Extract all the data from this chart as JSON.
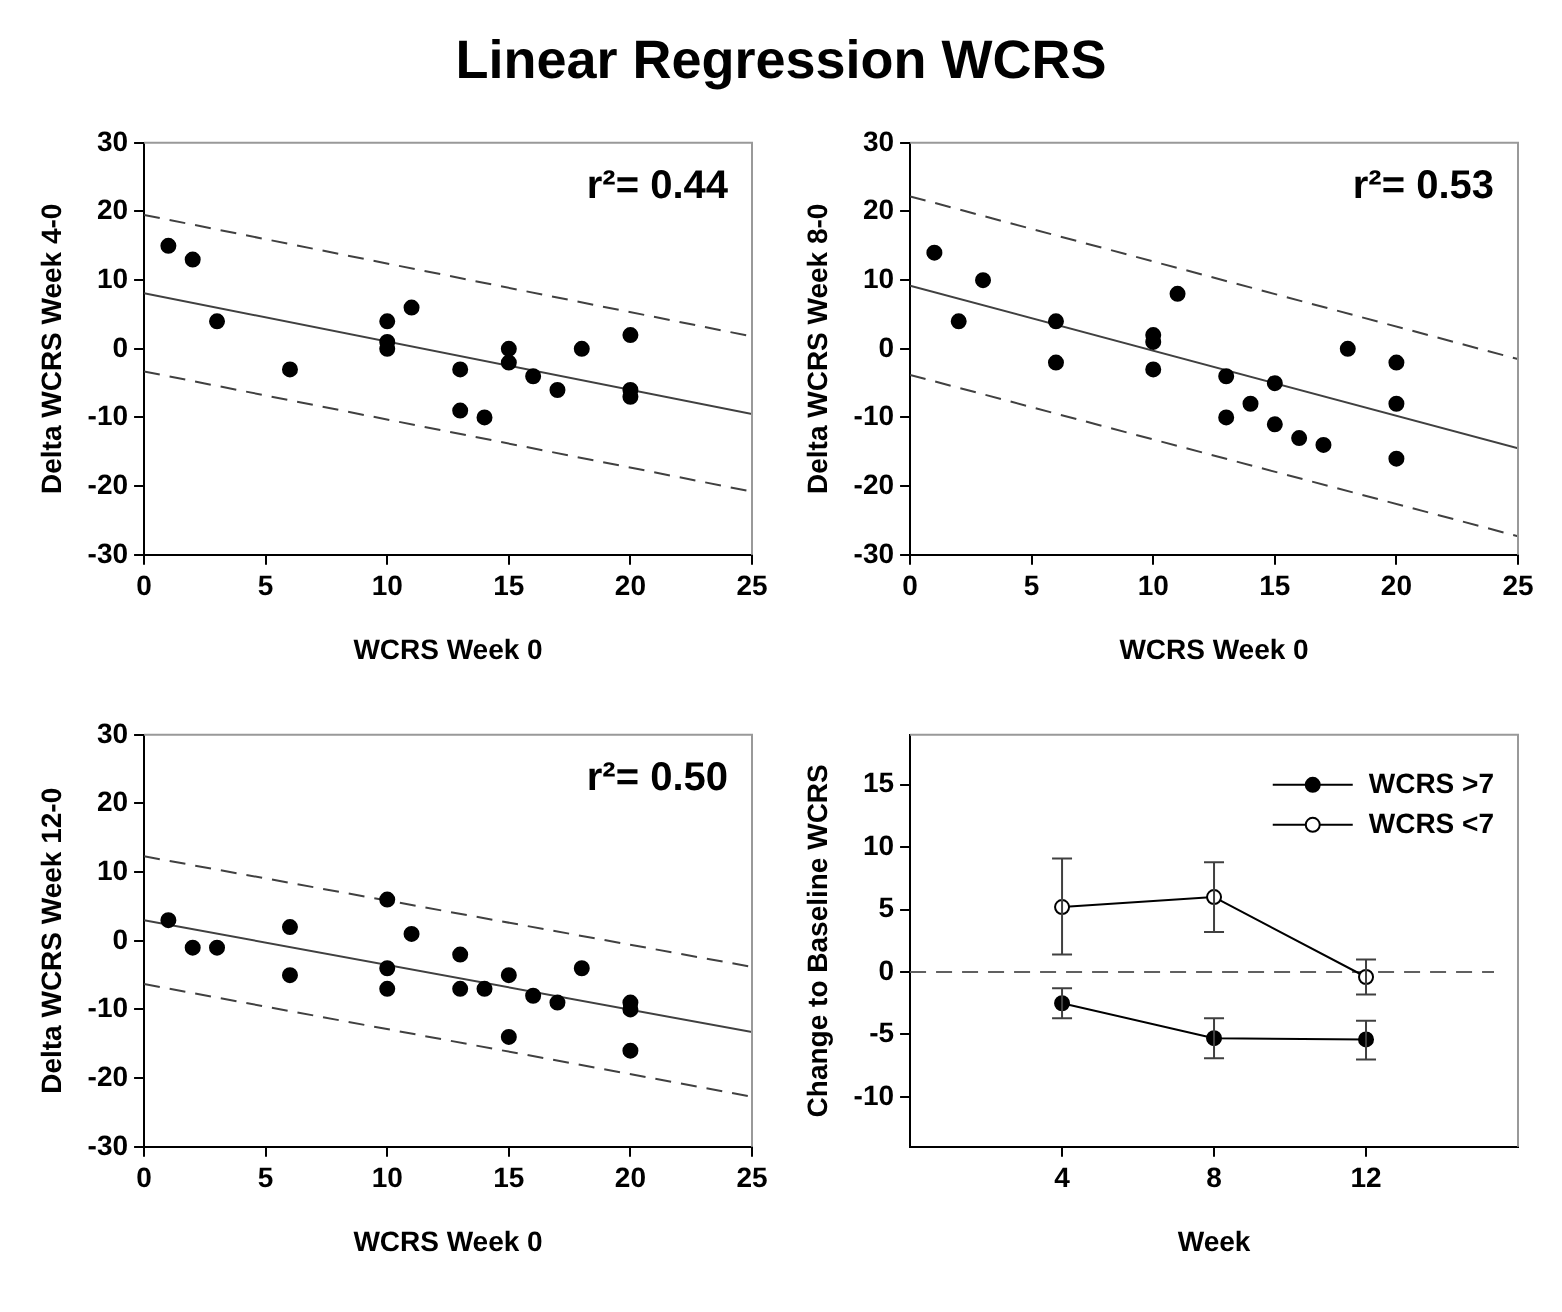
{
  "chart_data": [
    {
      "type": "scatter",
      "title": "Linear Regression WCRS",
      "xlabel": "WCRS Week 0",
      "ylabel": "Delta WCRS Week 4-0",
      "xlim": [
        0,
        25
      ],
      "xticks": [
        0,
        5,
        10,
        15,
        20,
        25
      ],
      "ylim": [
        -30,
        30
      ],
      "yticks": [
        -30,
        -20,
        -10,
        0,
        10,
        20,
        30
      ],
      "grid": false,
      "legend": false,
      "annotations": [
        "r²= 0.44"
      ],
      "series": [
        {
          "marker": "circle",
          "color": "#000000",
          "x": [
            1,
            2,
            3,
            6,
            10,
            10,
            10,
            11,
            13,
            13,
            14,
            15,
            15,
            16,
            17,
            18,
            20,
            20,
            20
          ],
          "values": [
            15,
            13,
            4,
            -3,
            4,
            1,
            0,
            6,
            -3,
            -9,
            -10,
            0,
            -2,
            -4,
            -6,
            0,
            2,
            -6,
            -7
          ]
        },
        {
          "type": "line",
          "marker": "none",
          "line_style": "solid",
          "color": "#404040",
          "x": [
            0,
            25
          ],
          "values": [
            8.1,
            -9.5
          ]
        },
        {
          "type": "line",
          "marker": "none",
          "line_style": "dashed",
          "color": "#404040",
          "x": [
            0,
            25
          ],
          "values": [
            19.5,
            1.8
          ]
        },
        {
          "type": "line",
          "marker": "none",
          "line_style": "dashed",
          "color": "#404040",
          "x": [
            0,
            25
          ],
          "values": [
            -3.3,
            -20.8
          ]
        }
      ]
    },
    {
      "type": "scatter",
      "xlabel": "WCRS Week 0",
      "ylabel": "Delta WCRS Week 8-0",
      "xlim": [
        0,
        25
      ],
      "xticks": [
        0,
        5,
        10,
        15,
        20,
        25
      ],
      "ylim": [
        -30,
        30
      ],
      "yticks": [
        -30,
        -20,
        -10,
        0,
        10,
        20,
        30
      ],
      "grid": false,
      "legend": false,
      "annotations": [
        "r²= 0.53"
      ],
      "series": [
        {
          "marker": "circle",
          "color": "#000000",
          "x": [
            1,
            2,
            3,
            6,
            6,
            10,
            10,
            10,
            11,
            13,
            13,
            14,
            15,
            15,
            16,
            17,
            18,
            20,
            20,
            20
          ],
          "values": [
            14,
            4,
            10,
            4,
            -2,
            2,
            1,
            -3,
            8,
            -4,
            -10,
            -8,
            -5,
            -11,
            -13,
            -14,
            0,
            -2,
            -8,
            -16
          ]
        },
        {
          "type": "line",
          "marker": "none",
          "line_style": "solid",
          "color": "#404040",
          "x": [
            0,
            25
          ],
          "values": [
            9.2,
            -14.5
          ]
        },
        {
          "type": "line",
          "marker": "none",
          "line_style": "dashed",
          "color": "#404040",
          "x": [
            0,
            25
          ],
          "values": [
            22.2,
            -1.5
          ]
        },
        {
          "type": "line",
          "marker": "none",
          "line_style": "dashed",
          "color": "#404040",
          "x": [
            0,
            25
          ],
          "values": [
            -3.8,
            -27.3
          ]
        }
      ]
    },
    {
      "type": "scatter",
      "xlabel": "WCRS Week 0",
      "ylabel": "Delta WCRS Week 12-0",
      "xlim": [
        0,
        25
      ],
      "xticks": [
        0,
        5,
        10,
        15,
        20,
        25
      ],
      "ylim": [
        -30,
        30
      ],
      "yticks": [
        -30,
        -20,
        -10,
        0,
        10,
        20,
        30
      ],
      "grid": false,
      "legend": false,
      "annotations": [
        "r²= 0.50"
      ],
      "series": [
        {
          "marker": "circle",
          "color": "#000000",
          "x": [
            1,
            2,
            3,
            6,
            6,
            10,
            10,
            10,
            11,
            13,
            13,
            14,
            15,
            15,
            16,
            17,
            18,
            20,
            20,
            20
          ],
          "values": [
            3,
            -1,
            -1,
            2,
            -5,
            6,
            -4,
            -7,
            1,
            -2,
            -7,
            -7,
            -5,
            -14,
            -8,
            -9,
            -4,
            -9,
            -10,
            -16
          ]
        },
        {
          "type": "line",
          "marker": "none",
          "line_style": "solid",
          "color": "#404040",
          "x": [
            0,
            25
          ],
          "values": [
            3.0,
            -13.3
          ]
        },
        {
          "type": "line",
          "marker": "none",
          "line_style": "dashed",
          "color": "#404040",
          "x": [
            0,
            25
          ],
          "values": [
            12.3,
            -3.8
          ]
        },
        {
          "type": "line",
          "marker": "none",
          "line_style": "dashed",
          "color": "#404040",
          "x": [
            0,
            25
          ],
          "values": [
            -6.3,
            -22.7
          ]
        }
      ]
    },
    {
      "type": "line",
      "xlabel": "Week",
      "ylabel": "Change to Baseline WCRS",
      "x": [
        4,
        8,
        12
      ],
      "xlim": [
        0,
        16
      ],
      "xticks": [
        4,
        8,
        12
      ],
      "ylim": [
        -14,
        19
      ],
      "yticks": [
        -10,
        -5,
        0,
        5,
        10,
        15
      ],
      "grid": false,
      "legend": "top right",
      "marker": "circle",
      "line_style": "solid",
      "ref_lines": [
        {
          "axis": "y",
          "value": 0,
          "line_style": "dashed",
          "color": "#606060"
        }
      ],
      "series": [
        {
          "name": "WCRS >7",
          "color": "#000000",
          "values": [
            -2.5,
            -5.3,
            -5.4
          ],
          "errors": [
            [
              -3.7,
              -1.3
            ],
            [
              -6.9,
              -3.7
            ],
            [
              -7.0,
              -3.9
            ]
          ]
        },
        {
          "name": "WCRS <7",
          "color": "#000000",
          "values": [
            5.2,
            6.0,
            -0.4
          ],
          "errors": [
            [
              1.4,
              9.1
            ],
            [
              3.2,
              8.8
            ],
            [
              -1.8,
              1.0
            ]
          ]
        }
      ]
    }
  ]
}
